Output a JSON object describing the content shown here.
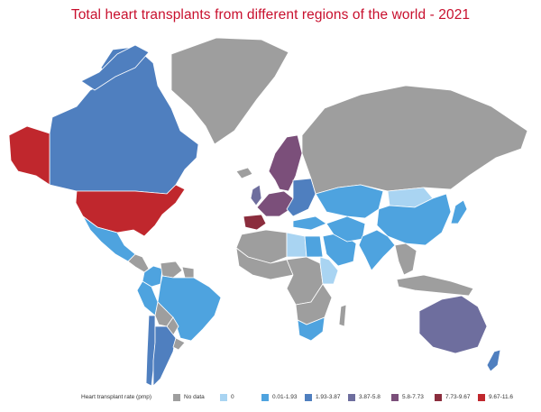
{
  "title": "Total heart transplants from different regions of the world - 2021",
  "legend": {
    "label": "Heart transplant rate (pmp)",
    "items": [
      {
        "label": "No data",
        "color": "#9e9e9e"
      },
      {
        "label": "0",
        "color": "#a9d4f2"
      },
      {
        "label": "0.01-1.93",
        "color": "#4ea3df"
      },
      {
        "label": "1.93-3.87",
        "color": "#4f7fbf"
      },
      {
        "label": "3.87-5.8",
        "color": "#6e6e9e"
      },
      {
        "label": "5.8-7.73",
        "color": "#7b4f7a"
      },
      {
        "label": "7.73-9.67",
        "color": "#8b2d3d"
      },
      {
        "label": "9.67-11.6",
        "color": "#c0272d"
      }
    ]
  },
  "regions": [
    {
      "name": "Alaska",
      "category": "9.67-11.6"
    },
    {
      "name": "Canada",
      "category": "1.93-3.87"
    },
    {
      "name": "United States",
      "category": "9.67-11.6"
    },
    {
      "name": "Greenland",
      "category": "No data"
    },
    {
      "name": "Mexico",
      "category": "0.01-1.93"
    },
    {
      "name": "Central America",
      "category": "No data"
    },
    {
      "name": "Colombia",
      "category": "0.01-1.93"
    },
    {
      "name": "Venezuela",
      "category": "No data"
    },
    {
      "name": "Guianas",
      "category": "No data"
    },
    {
      "name": "Brazil",
      "category": "0.01-1.93"
    },
    {
      "name": "Peru",
      "category": "0.01-1.93"
    },
    {
      "name": "Bolivia",
      "category": "No data"
    },
    {
      "name": "Paraguay",
      "category": "No data"
    },
    {
      "name": "Chile",
      "category": "1.93-3.87"
    },
    {
      "name": "Argentina",
      "category": "1.93-3.87"
    },
    {
      "name": "Uruguay",
      "category": "No data"
    },
    {
      "name": "Iceland",
      "category": "No data"
    },
    {
      "name": "Scandinavia",
      "category": "5.8-7.73"
    },
    {
      "name": "United Kingdom",
      "category": "3.87-5.8"
    },
    {
      "name": "Western Europe",
      "category": "5.8-7.73"
    },
    {
      "name": "Spain",
      "category": "7.73-9.67"
    },
    {
      "name": "Eastern Europe",
      "category": "1.93-3.87"
    },
    {
      "name": "Russia",
      "category": "No data"
    },
    {
      "name": "Turkey",
      "category": "0.01-1.93"
    },
    {
      "name": "North Africa",
      "category": "No data"
    },
    {
      "name": "Egypt",
      "category": "0.01-1.93"
    },
    {
      "name": "Libya",
      "category": "0"
    },
    {
      "name": "West Africa",
      "category": "No data"
    },
    {
      "name": "Central Africa",
      "category": "No data"
    },
    {
      "name": "East Africa",
      "category": "0"
    },
    {
      "name": "Southern Africa",
      "category": "No data"
    },
    {
      "name": "South Africa",
      "category": "0.01-1.93"
    },
    {
      "name": "Madagascar",
      "category": "No data"
    },
    {
      "name": "Saudi Arabia",
      "category": "0.01-1.93"
    },
    {
      "name": "Iran",
      "category": "0.01-1.93"
    },
    {
      "name": "Central Asia",
      "category": "0.01-1.93"
    },
    {
      "name": "Mongolia",
      "category": "0"
    },
    {
      "name": "China",
      "category": "0.01-1.93"
    },
    {
      "name": "India",
      "category": "0.01-1.93"
    },
    {
      "name": "Southeast Asia",
      "category": "No data"
    },
    {
      "name": "Japan",
      "category": "0.01-1.93"
    },
    {
      "name": "Indonesia",
      "category": "No data"
    },
    {
      "name": "Australia",
      "category": "3.87-5.8"
    },
    {
      "name": "New Zealand",
      "category": "1.93-3.87"
    }
  ]
}
